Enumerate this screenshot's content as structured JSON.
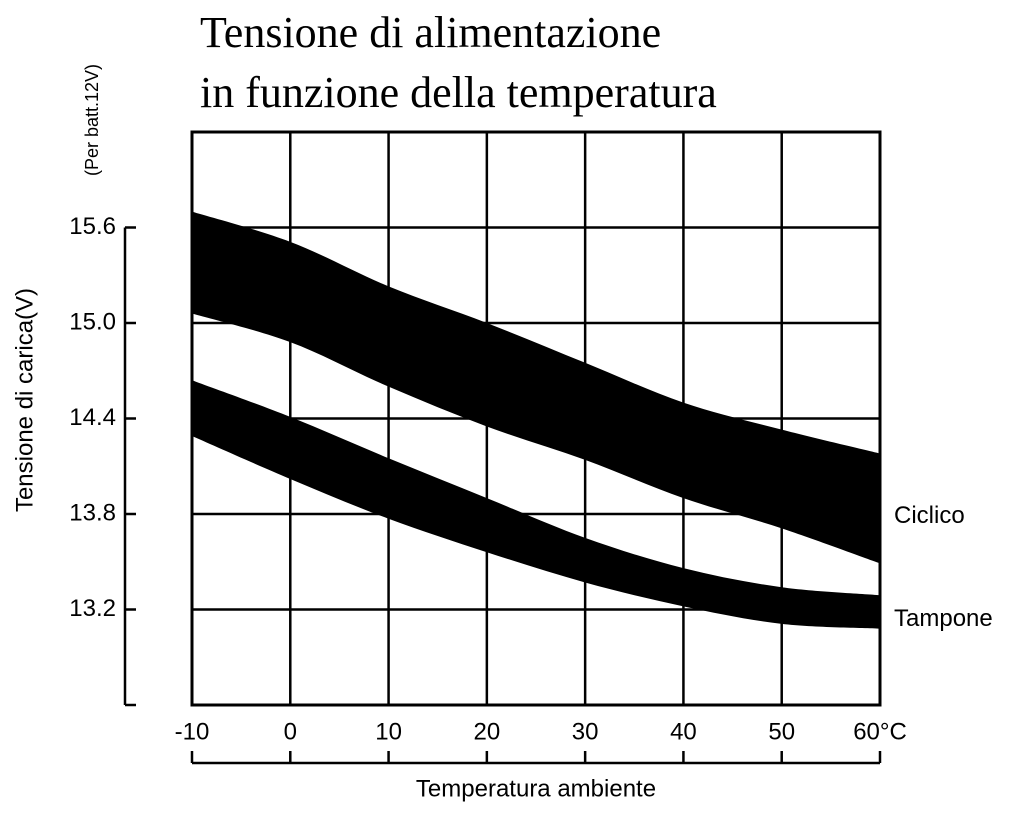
{
  "chart_data": {
    "type": "band",
    "title": [
      "Tensione di alimentazione",
      "in funzione della temperatura"
    ],
    "y_note": "(Per batt.12V)",
    "ylabel": "Tensione di carica(V)",
    "xlabel": "Temperatura ambiente",
    "x": [
      -10,
      0,
      10,
      20,
      30,
      40,
      50,
      60
    ],
    "series": [
      {
        "name": "Ciclico",
        "color": "#000000",
        "upper": [
          15.7,
          15.51,
          15.23,
          15.0,
          14.75,
          14.5,
          14.33,
          14.18
        ],
        "lower": [
          15.06,
          14.88,
          14.6,
          14.35,
          14.14,
          13.9,
          13.71,
          13.49
        ]
      },
      {
        "name": "Tampone",
        "color": "#000000",
        "upper": [
          14.64,
          14.41,
          14.15,
          13.9,
          13.65,
          13.46,
          13.34,
          13.29
        ],
        "lower": [
          14.29,
          14.02,
          13.77,
          13.56,
          13.37,
          13.22,
          13.11,
          13.08
        ]
      }
    ],
    "xlim": [
      -10,
      60
    ],
    "xticks": [
      -10,
      0,
      10,
      20,
      30,
      40,
      50,
      {
        "value": 60,
        "label": "60°C"
      }
    ],
    "ylim": [
      12.6,
      16.2
    ],
    "yticks": [
      15.6,
      {
        "value": 15,
        "label": "15.0"
      },
      14.4,
      13.8,
      13.2
    ],
    "grid": true
  }
}
